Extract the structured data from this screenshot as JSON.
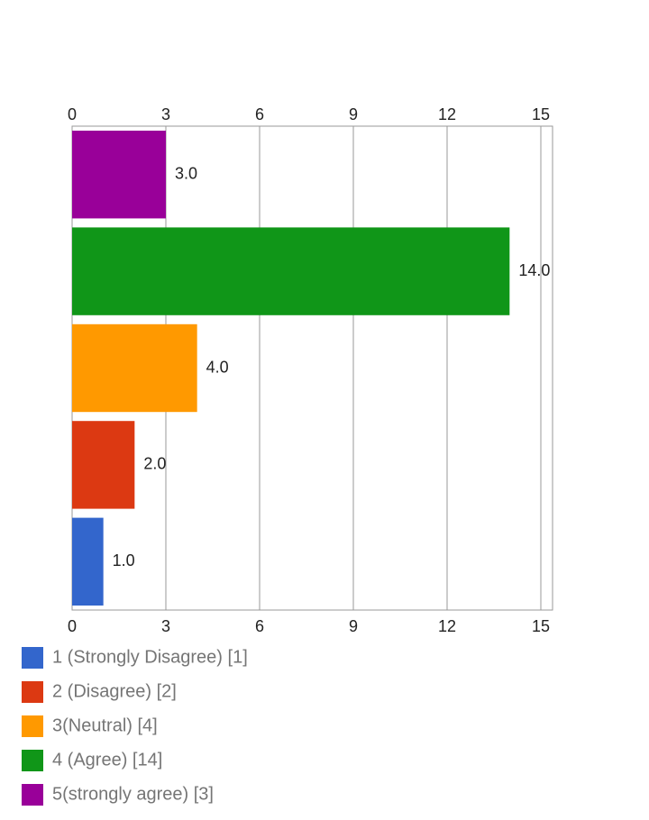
{
  "chart_data": {
    "type": "bar",
    "orientation": "horizontal",
    "series": [
      {
        "name": "1 (Strongly Disagree)  [1]",
        "color": "#3366cc",
        "values": [
          1
        ],
        "value_labels": [
          "1.0"
        ]
      },
      {
        "name": "2 (Disagree)  [2]",
        "color": "#dc3912",
        "values": [
          2
        ],
        "value_labels": [
          "2.0"
        ]
      },
      {
        "name": "3(Neutral)  [4]",
        "color": "#ff9900",
        "values": [
          4
        ],
        "value_labels": [
          "4.0"
        ]
      },
      {
        "name": "4 (Agree)  [14]",
        "color": "#109618",
        "values": [
          14
        ],
        "value_labels": [
          "14.0"
        ]
      },
      {
        "name": "5(strongly agree)  [3]",
        "color": "#990099",
        "values": [
          3
        ],
        "value_labels": [
          "3.0"
        ]
      }
    ],
    "xlim": [
      0,
      15
    ],
    "xticks": [
      0,
      3,
      6,
      9,
      12,
      15
    ],
    "grid": true
  }
}
